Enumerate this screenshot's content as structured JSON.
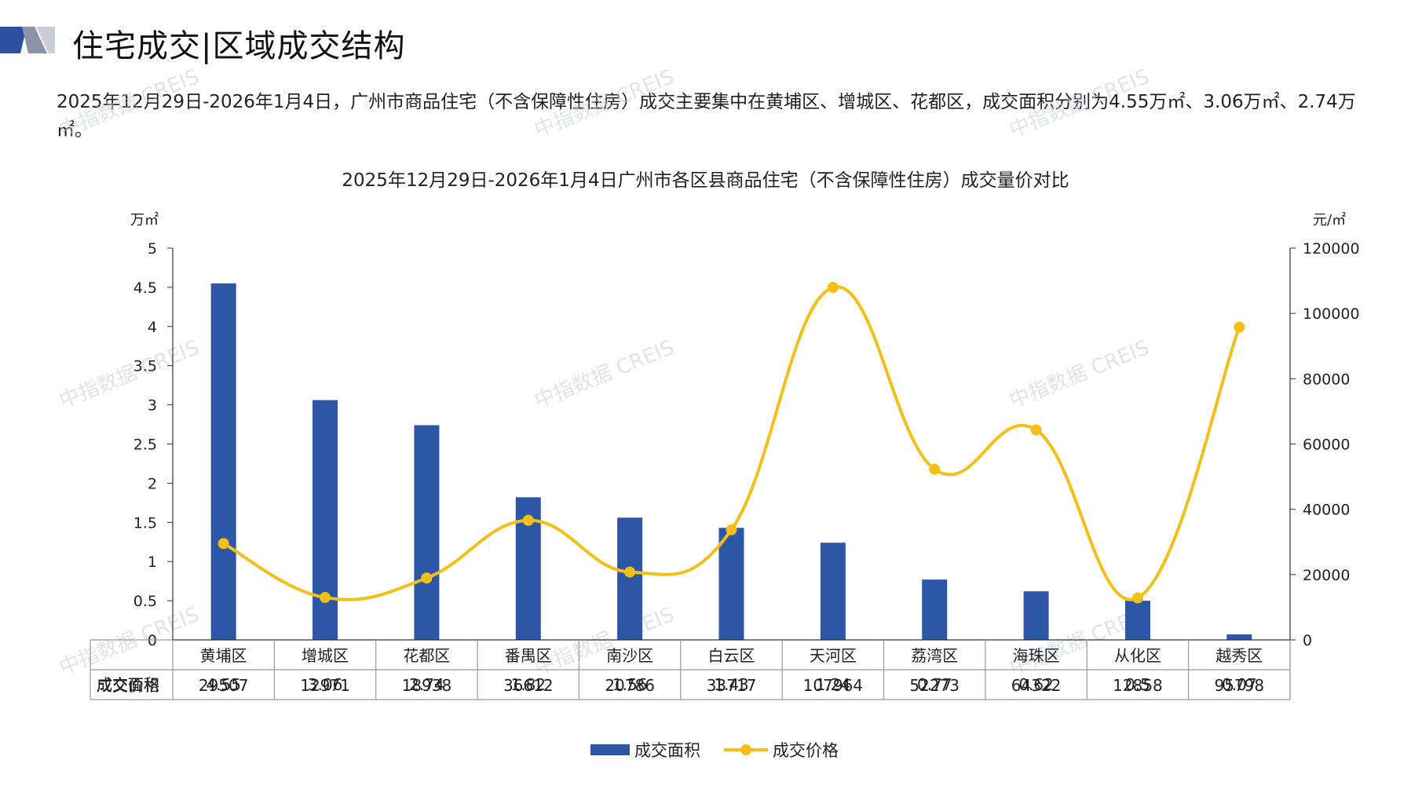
{
  "header": {
    "title": "住宅成交|区域成交结构",
    "accent_color": "#2f4fa0"
  },
  "summary": {
    "text": "2025年12月29日-2026年1月4日，广州市商品住宅（不含保障性住房）成交主要集中在黄埔区、增城区、花都区，成交面积分别为4.55万㎡、3.06万㎡、2.74万㎡。"
  },
  "watermark": "中指数据 CREIS",
  "chart_data": {
    "type": "bar",
    "title": "2025年12月29日-2026年1月4日广州市各区县商品住宅（不含保障性住房）成交量价对比",
    "y_left_unit": "万㎡",
    "y_right_unit": "元/㎡",
    "ylim_left": [
      0,
      5
    ],
    "ylim_right": [
      0,
      120000
    ],
    "y_left_ticks": [
      "0",
      "0.5",
      "1",
      "1.5",
      "2",
      "2.5",
      "3",
      "3.5",
      "4",
      "4.5",
      "5"
    ],
    "y_right_ticks": [
      "0",
      "20000",
      "40000",
      "60000",
      "80000",
      "100000",
      "120000"
    ],
    "categories": [
      "黄埔区",
      "增城区",
      "花都区",
      "番禺区",
      "南沙区",
      "白云区",
      "天河区",
      "荔湾区",
      "海珠区",
      "从化区",
      "越秀区"
    ],
    "series": [
      {
        "name": "成交面积",
        "type": "bar",
        "axis": "left",
        "color": "#2e56a6",
        "values": [
          4.55,
          3.06,
          2.74,
          1.82,
          1.56,
          1.43,
          1.24,
          0.77,
          0.62,
          0.5,
          0.07
        ],
        "labels": [
          "4.55",
          "3.06",
          "2.74",
          "1.82",
          "1.56",
          "1.43",
          "1.24",
          "0.77",
          "0.62",
          "0.5",
          "0.07"
        ]
      },
      {
        "name": "成交价格",
        "type": "line",
        "axis": "right",
        "color": "#f2c018",
        "values": [
          29507,
          12971,
          18938,
          36612,
          20786,
          33717,
          107964,
          52273,
          64322,
          12858,
          95798
        ],
        "labels": [
          "29507",
          "12971",
          "18938",
          "36612",
          "20786",
          "33717",
          "107964",
          "52273",
          "64322",
          "12858",
          "95798"
        ]
      }
    ],
    "legend": "bottom",
    "grid": false
  }
}
